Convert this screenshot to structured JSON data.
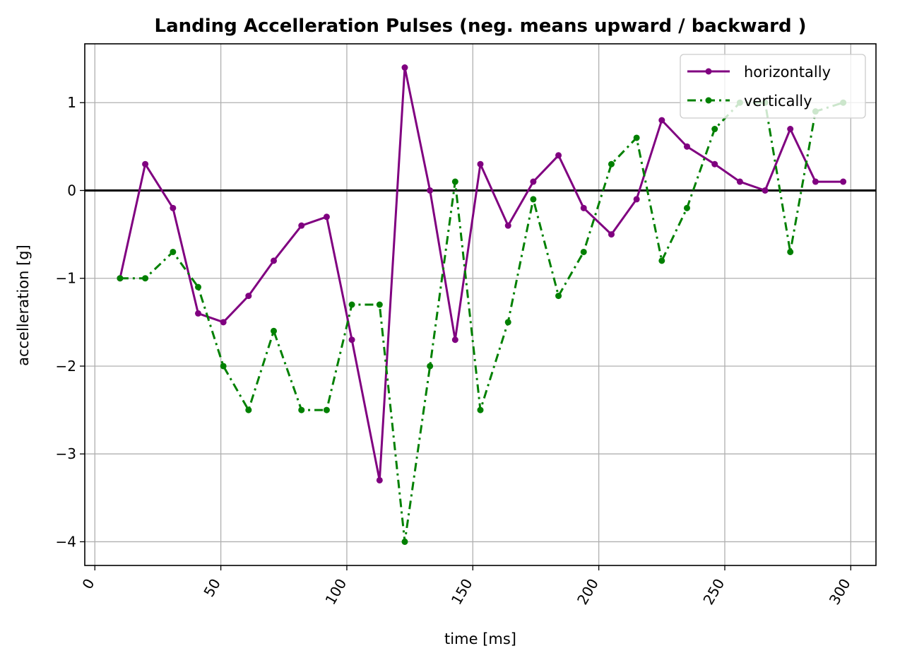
{
  "chart_data": {
    "type": "line",
    "title": "Landing Accelleration Pulses (neg. means upward / backward )",
    "xlabel": "time [ms]",
    "ylabel": "accelleration [g]",
    "xlim": [
      -4,
      310
    ],
    "ylim": [
      -4.27,
      1.67
    ],
    "xticks": [
      0,
      50,
      100,
      150,
      200,
      250,
      300
    ],
    "yticks": [
      -4,
      -3,
      -2,
      -1,
      0,
      1
    ],
    "xtick_labels": [
      "0",
      "50",
      "100",
      "150",
      "200",
      "250",
      "300"
    ],
    "ytick_labels": [
      "−4",
      "−3",
      "−2",
      "−1",
      "0",
      "1"
    ],
    "xtick_rotation": 60,
    "grid": true,
    "legend_position": "top-right",
    "reference_line": {
      "y": 0,
      "color": "#000000"
    },
    "x": [
      10,
      20,
      31,
      41,
      51,
      61,
      71,
      82,
      92,
      102,
      113,
      123,
      133,
      143,
      153,
      164,
      174,
      184,
      194,
      205,
      215,
      225,
      235,
      246,
      256,
      266,
      276,
      286,
      297
    ],
    "series": [
      {
        "name": "horizontally",
        "color": "#800080",
        "line_style": "solid",
        "marker": "circle",
        "values": [
          -1.0,
          0.3,
          -0.2,
          -1.4,
          -1.5,
          -1.2,
          -0.8,
          -0.4,
          -0.3,
          -1.7,
          -3.3,
          1.4,
          0.0,
          -1.7,
          0.3,
          -0.4,
          0.1,
          0.4,
          -0.2,
          -0.5,
          -0.1,
          0.8,
          0.5,
          0.3,
          0.1,
          0.0,
          0.7,
          0.1,
          0.1
        ]
      },
      {
        "name": "vertically",
        "color": "#008000",
        "line_style": "dashdot",
        "marker": "circle",
        "values": [
          -1.0,
          -1.0,
          -0.7,
          -1.1,
          -2.0,
          -2.5,
          -1.6,
          -2.5,
          -2.5,
          -1.3,
          -1.3,
          -4.0,
          -2.0,
          0.1,
          -2.5,
          -1.5,
          -0.1,
          -1.2,
          -0.7,
          0.3,
          0.6,
          -0.8,
          -0.2,
          0.7,
          1.0,
          1.0,
          -0.7,
          0.9,
          1.0
        ]
      }
    ]
  }
}
